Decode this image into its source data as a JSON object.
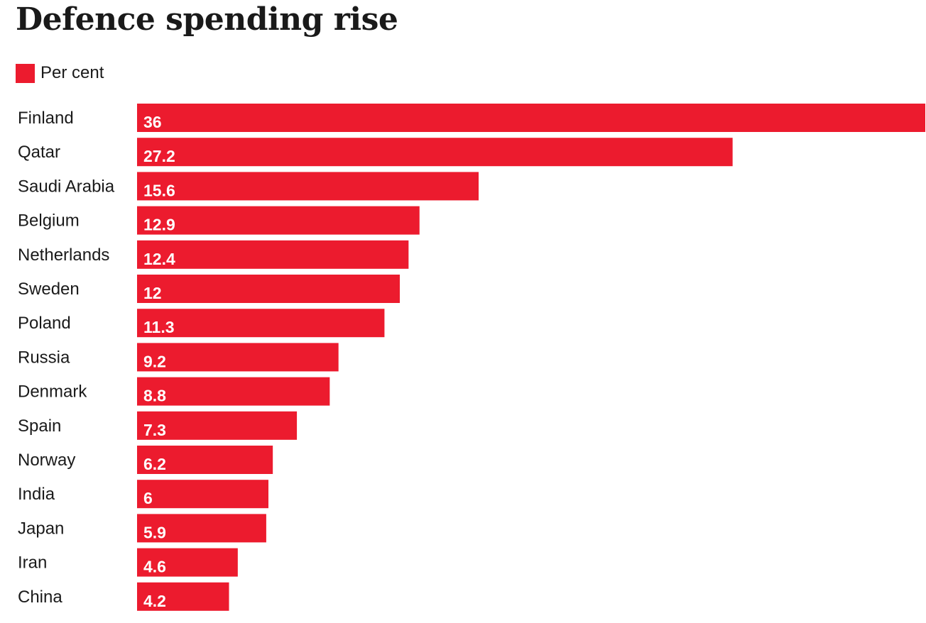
{
  "chart_data": {
    "type": "bar",
    "orientation": "horizontal",
    "title": "Defence spending rise",
    "legend": [
      {
        "name": "Per cent",
        "color": "#ec1b2e"
      }
    ],
    "legend_placement": "top-left",
    "categories": [
      "Finland",
      "Qatar",
      "Saudi Arabia",
      "Belgium",
      "Netherlands",
      "Sweden",
      "Poland",
      "Russia",
      "Denmark",
      "Spain",
      "Norway",
      "India",
      "Japan",
      "Iran",
      "China"
    ],
    "series": [
      {
        "name": "Per cent",
        "color": "#ec1b2e",
        "values": [
          36,
          27.2,
          15.6,
          12.9,
          12.4,
          12,
          11.3,
          9.2,
          8.8,
          7.3,
          6.2,
          6,
          5.9,
          4.6,
          4.2
        ]
      }
    ],
    "xlim": [
      0,
      36
    ],
    "grid": false,
    "xlabel": "",
    "ylabel": ""
  }
}
